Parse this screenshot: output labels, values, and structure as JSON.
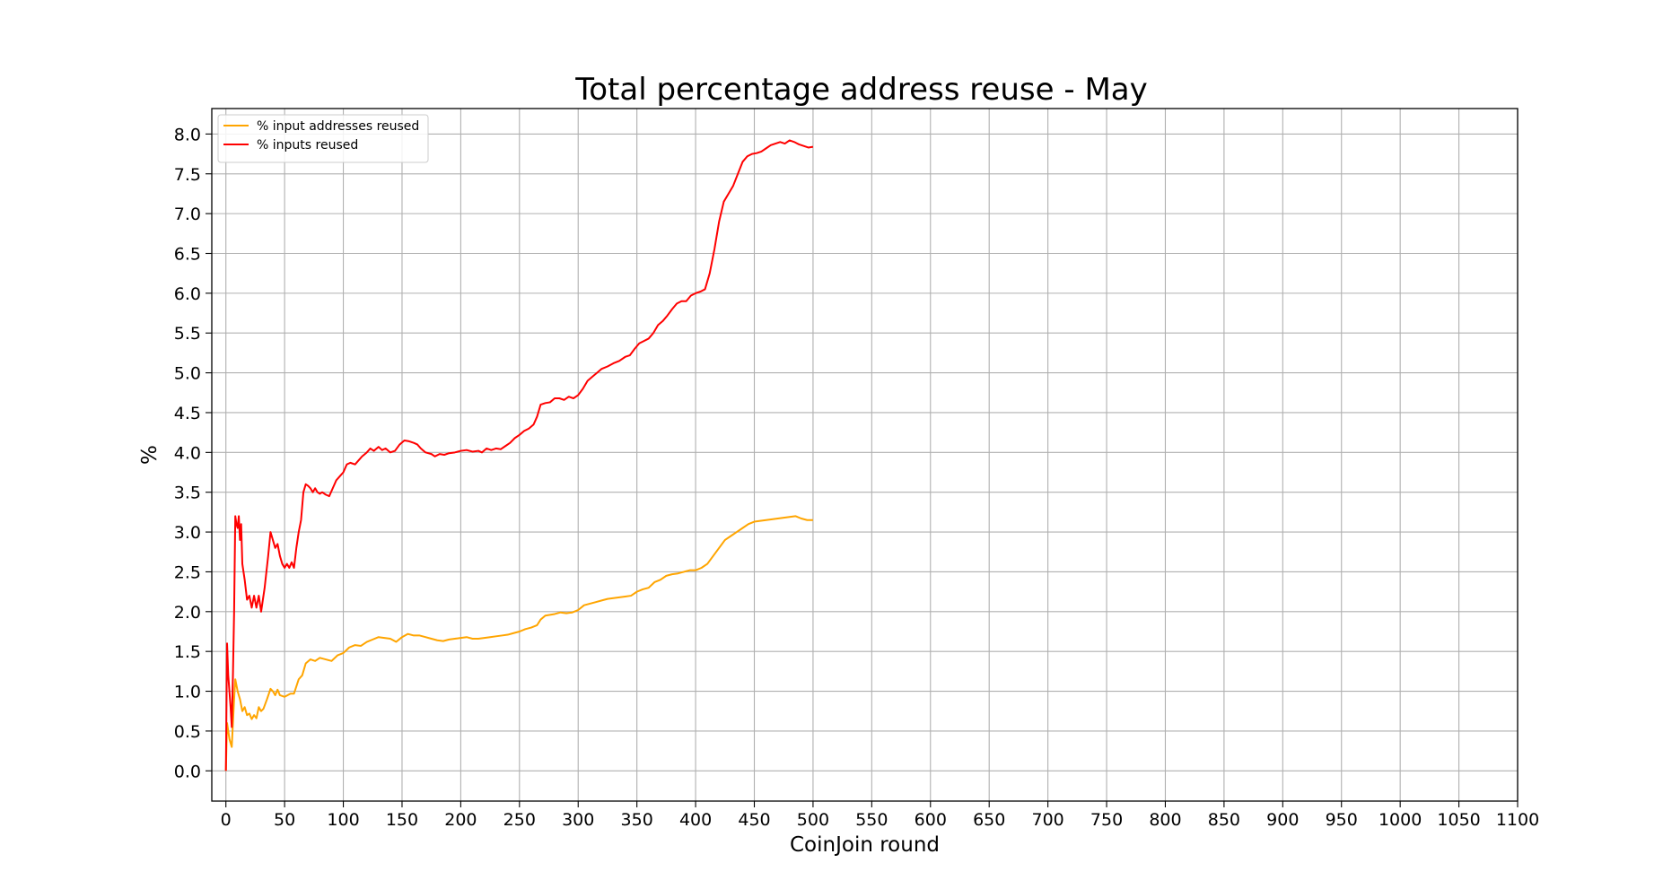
{
  "chart_data": {
    "type": "line",
    "title": "Total percentage address reuse - May",
    "xlabel": "CoinJoin round",
    "ylabel": "%",
    "xlim": [
      -12,
      1100
    ],
    "ylim": [
      -0.38,
      8.32
    ],
    "grid": true,
    "legend_position": "top-left",
    "x_ticks": [
      "0",
      "50",
      "100",
      "150",
      "200",
      "250",
      "300",
      "350",
      "400",
      "450",
      "500",
      "550",
      "600",
      "650",
      "700",
      "750",
      "800",
      "850",
      "900",
      "950",
      "1000",
      "1050",
      "1100"
    ],
    "y_ticks": [
      "0.0",
      "0.5",
      "1.0",
      "1.5",
      "2.0",
      "2.5",
      "3.0",
      "3.5",
      "4.0",
      "4.5",
      "5.0",
      "5.5",
      "6.0",
      "6.5",
      "7.0",
      "7.5",
      "8.0"
    ],
    "series": [
      {
        "name": "% input addresses reused",
        "color": "#ffa500",
        "points": [
          [
            0,
            0
          ],
          [
            1,
            0.6
          ],
          [
            3,
            0.4
          ],
          [
            5,
            0.3
          ],
          [
            7,
            0.9
          ],
          [
            8,
            1.15
          ],
          [
            10,
            1.0
          ],
          [
            12,
            0.9
          ],
          [
            14,
            0.75
          ],
          [
            16,
            0.8
          ],
          [
            18,
            0.7
          ],
          [
            20,
            0.72
          ],
          [
            22,
            0.65
          ],
          [
            24,
            0.7
          ],
          [
            26,
            0.66
          ],
          [
            28,
            0.8
          ],
          [
            30,
            0.75
          ],
          [
            32,
            0.78
          ],
          [
            35,
            0.9
          ],
          [
            38,
            1.03
          ],
          [
            40,
            1.0
          ],
          [
            42,
            0.95
          ],
          [
            44,
            1.02
          ],
          [
            46,
            0.95
          ],
          [
            50,
            0.93
          ],
          [
            55,
            0.97
          ],
          [
            58,
            0.97
          ],
          [
            62,
            1.15
          ],
          [
            65,
            1.2
          ],
          [
            68,
            1.35
          ],
          [
            72,
            1.4
          ],
          [
            76,
            1.38
          ],
          [
            80,
            1.42
          ],
          [
            85,
            1.4
          ],
          [
            90,
            1.38
          ],
          [
            95,
            1.45
          ],
          [
            100,
            1.48
          ],
          [
            105,
            1.55
          ],
          [
            110,
            1.58
          ],
          [
            115,
            1.57
          ],
          [
            120,
            1.62
          ],
          [
            125,
            1.65
          ],
          [
            130,
            1.68
          ],
          [
            135,
            1.67
          ],
          [
            140,
            1.66
          ],
          [
            145,
            1.62
          ],
          [
            150,
            1.68
          ],
          [
            155,
            1.72
          ],
          [
            160,
            1.7
          ],
          [
            165,
            1.7
          ],
          [
            170,
            1.68
          ],
          [
            175,
            1.66
          ],
          [
            180,
            1.64
          ],
          [
            185,
            1.63
          ],
          [
            190,
            1.65
          ],
          [
            195,
            1.66
          ],
          [
            200,
            1.67
          ],
          [
            205,
            1.68
          ],
          [
            210,
            1.66
          ],
          [
            215,
            1.66
          ],
          [
            220,
            1.67
          ],
          [
            225,
            1.68
          ],
          [
            230,
            1.69
          ],
          [
            235,
            1.7
          ],
          [
            240,
            1.71
          ],
          [
            245,
            1.73
          ],
          [
            250,
            1.75
          ],
          [
            255,
            1.78
          ],
          [
            260,
            1.8
          ],
          [
            265,
            1.83
          ],
          [
            268,
            1.9
          ],
          [
            272,
            1.95
          ],
          [
            276,
            1.96
          ],
          [
            280,
            1.97
          ],
          [
            285,
            1.99
          ],
          [
            290,
            1.98
          ],
          [
            295,
            1.99
          ],
          [
            300,
            2.02
          ],
          [
            305,
            2.08
          ],
          [
            310,
            2.1
          ],
          [
            315,
            2.12
          ],
          [
            320,
            2.14
          ],
          [
            325,
            2.16
          ],
          [
            330,
            2.17
          ],
          [
            335,
            2.18
          ],
          [
            340,
            2.19
          ],
          [
            345,
            2.2
          ],
          [
            350,
            2.25
          ],
          [
            355,
            2.28
          ],
          [
            360,
            2.3
          ],
          [
            365,
            2.37
          ],
          [
            370,
            2.4
          ],
          [
            375,
            2.45
          ],
          [
            380,
            2.47
          ],
          [
            385,
            2.48
          ],
          [
            390,
            2.5
          ],
          [
            395,
            2.52
          ],
          [
            400,
            2.52
          ],
          [
            405,
            2.55
          ],
          [
            410,
            2.6
          ],
          [
            415,
            2.7
          ],
          [
            420,
            2.8
          ],
          [
            425,
            2.9
          ],
          [
            430,
            2.95
          ],
          [
            435,
            3.0
          ],
          [
            440,
            3.05
          ],
          [
            445,
            3.1
          ],
          [
            450,
            3.13
          ],
          [
            455,
            3.14
          ],
          [
            460,
            3.15
          ],
          [
            465,
            3.16
          ],
          [
            470,
            3.17
          ],
          [
            475,
            3.18
          ],
          [
            480,
            3.19
          ],
          [
            485,
            3.2
          ],
          [
            490,
            3.17
          ],
          [
            495,
            3.15
          ],
          [
            500,
            3.15
          ]
        ]
      },
      {
        "name": "% inputs reused",
        "color": "#ff0000",
        "points": [
          [
            0,
            0
          ],
          [
            1,
            1.6
          ],
          [
            2,
            1.2
          ],
          [
            4,
            0.8
          ],
          [
            5,
            0.55
          ],
          [
            6,
            1.2
          ],
          [
            7,
            2.0
          ],
          [
            8,
            3.2
          ],
          [
            9,
            3.1
          ],
          [
            10,
            3.05
          ],
          [
            11,
            3.2
          ],
          [
            12,
            2.9
          ],
          [
            13,
            3.1
          ],
          [
            14,
            2.6
          ],
          [
            16,
            2.4
          ],
          [
            18,
            2.15
          ],
          [
            20,
            2.2
          ],
          [
            22,
            2.05
          ],
          [
            24,
            2.2
          ],
          [
            26,
            2.05
          ],
          [
            28,
            2.2
          ],
          [
            30,
            2.0
          ],
          [
            33,
            2.3
          ],
          [
            36,
            2.7
          ],
          [
            38,
            3.0
          ],
          [
            40,
            2.9
          ],
          [
            42,
            2.8
          ],
          [
            44,
            2.85
          ],
          [
            46,
            2.7
          ],
          [
            48,
            2.6
          ],
          [
            50,
            2.55
          ],
          [
            52,
            2.6
          ],
          [
            54,
            2.55
          ],
          [
            56,
            2.62
          ],
          [
            58,
            2.55
          ],
          [
            60,
            2.8
          ],
          [
            62,
            3.0
          ],
          [
            64,
            3.15
          ],
          [
            66,
            3.5
          ],
          [
            68,
            3.6
          ],
          [
            70,
            3.58
          ],
          [
            72,
            3.55
          ],
          [
            74,
            3.5
          ],
          [
            76,
            3.55
          ],
          [
            78,
            3.5
          ],
          [
            80,
            3.48
          ],
          [
            82,
            3.5
          ],
          [
            85,
            3.47
          ],
          [
            88,
            3.45
          ],
          [
            91,
            3.55
          ],
          [
            94,
            3.65
          ],
          [
            97,
            3.7
          ],
          [
            100,
            3.75
          ],
          [
            103,
            3.85
          ],
          [
            106,
            3.87
          ],
          [
            110,
            3.85
          ],
          [
            113,
            3.9
          ],
          [
            116,
            3.95
          ],
          [
            120,
            4.0
          ],
          [
            123,
            4.05
          ],
          [
            126,
            4.02
          ],
          [
            130,
            4.07
          ],
          [
            133,
            4.03
          ],
          [
            136,
            4.05
          ],
          [
            140,
            4.0
          ],
          [
            144,
            4.02
          ],
          [
            148,
            4.1
          ],
          [
            152,
            4.15
          ],
          [
            156,
            4.14
          ],
          [
            160,
            4.12
          ],
          [
            163,
            4.1
          ],
          [
            166,
            4.05
          ],
          [
            170,
            4.0
          ],
          [
            175,
            3.98
          ],
          [
            178,
            3.95
          ],
          [
            182,
            3.98
          ],
          [
            186,
            3.97
          ],
          [
            190,
            3.99
          ],
          [
            195,
            4.0
          ],
          [
            200,
            4.02
          ],
          [
            205,
            4.03
          ],
          [
            210,
            4.01
          ],
          [
            215,
            4.02
          ],
          [
            218,
            4.0
          ],
          [
            222,
            4.05
          ],
          [
            226,
            4.03
          ],
          [
            230,
            4.05
          ],
          [
            234,
            4.04
          ],
          [
            238,
            4.08
          ],
          [
            242,
            4.12
          ],
          [
            246,
            4.18
          ],
          [
            250,
            4.22
          ],
          [
            254,
            4.27
          ],
          [
            258,
            4.3
          ],
          [
            262,
            4.35
          ],
          [
            265,
            4.45
          ],
          [
            268,
            4.6
          ],
          [
            272,
            4.62
          ],
          [
            276,
            4.63
          ],
          [
            280,
            4.68
          ],
          [
            284,
            4.68
          ],
          [
            288,
            4.66
          ],
          [
            292,
            4.7
          ],
          [
            296,
            4.68
          ],
          [
            300,
            4.72
          ],
          [
            304,
            4.8
          ],
          [
            308,
            4.9
          ],
          [
            312,
            4.95
          ],
          [
            316,
            5.0
          ],
          [
            320,
            5.05
          ],
          [
            325,
            5.08
          ],
          [
            330,
            5.12
          ],
          [
            335,
            5.15
          ],
          [
            340,
            5.2
          ],
          [
            344,
            5.22
          ],
          [
            348,
            5.3
          ],
          [
            352,
            5.37
          ],
          [
            356,
            5.4
          ],
          [
            360,
            5.43
          ],
          [
            364,
            5.5
          ],
          [
            368,
            5.6
          ],
          [
            372,
            5.65
          ],
          [
            376,
            5.72
          ],
          [
            380,
            5.8
          ],
          [
            384,
            5.87
          ],
          [
            388,
            5.9
          ],
          [
            392,
            5.9
          ],
          [
            396,
            5.97
          ],
          [
            400,
            6.0
          ],
          [
            404,
            6.02
          ],
          [
            408,
            6.05
          ],
          [
            412,
            6.25
          ],
          [
            416,
            6.55
          ],
          [
            420,
            6.9
          ],
          [
            424,
            7.15
          ],
          [
            428,
            7.25
          ],
          [
            432,
            7.35
          ],
          [
            436,
            7.5
          ],
          [
            440,
            7.65
          ],
          [
            444,
            7.72
          ],
          [
            448,
            7.75
          ],
          [
            452,
            7.76
          ],
          [
            456,
            7.78
          ],
          [
            460,
            7.82
          ],
          [
            464,
            7.86
          ],
          [
            468,
            7.88
          ],
          [
            472,
            7.9
          ],
          [
            476,
            7.88
          ],
          [
            480,
            7.92
          ],
          [
            484,
            7.9
          ],
          [
            488,
            7.87
          ],
          [
            492,
            7.85
          ],
          [
            496,
            7.83
          ],
          [
            500,
            7.84
          ]
        ]
      }
    ]
  }
}
